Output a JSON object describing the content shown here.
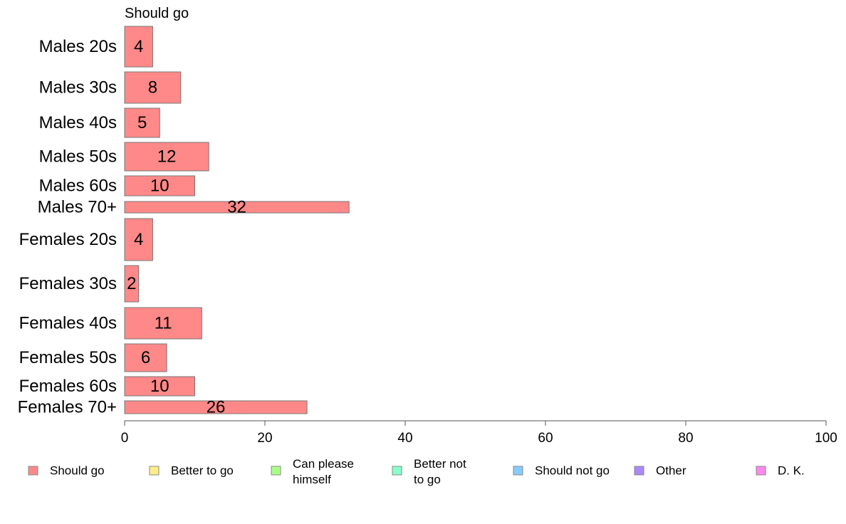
{
  "chart_data": {
    "type": "bar",
    "orientation": "horizontal",
    "stacked": true,
    "header": "Should go",
    "categories": [
      "Males 20s",
      "Males 30s",
      "Males 40s",
      "Males 50s",
      "Males 60s",
      "Males 70+",
      "Females 20s",
      "Females 30s",
      "Females 40s",
      "Females 50s",
      "Females 60s",
      "Females 70+"
    ],
    "series": [
      {
        "name": "Should go",
        "color": "#ff8888",
        "values": [
          4,
          8,
          5,
          12,
          10,
          32,
          4,
          2,
          11,
          6,
          10,
          26
        ]
      }
    ],
    "xlim": [
      0,
      100
    ],
    "xticks": [
      0,
      20,
      40,
      60,
      80,
      100
    ],
    "grid": false,
    "legend_position": "bottom",
    "legend": [
      {
        "label": "Should go",
        "color": "#ff8888"
      },
      {
        "label": "Better to go",
        "color": "#ffee88"
      },
      {
        "label": "Can please himself",
        "color": "#aaff88"
      },
      {
        "label": "Better not to go",
        "color": "#88ffcc"
      },
      {
        "label": "Should not go",
        "color": "#88ccff"
      },
      {
        "label": "Other",
        "color": "#aa88ff"
      },
      {
        "label": "D. K.",
        "color": "#ff88ee"
      }
    ]
  }
}
